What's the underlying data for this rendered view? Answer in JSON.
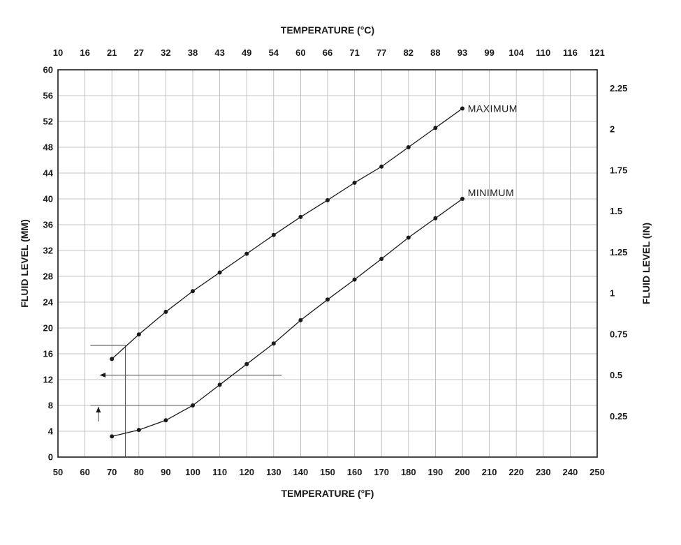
{
  "chart_data": {
    "type": "line",
    "title_top_axis": "TEMPERATURE (°C)",
    "xlabel_bottom": "TEMPERATURE (°F)",
    "ylabel_left": "FLUID LEVEL (MM)",
    "ylabel_right": "FLUID LEVEL (IN)",
    "x_axis": {
      "min": 50,
      "max": 250,
      "ticks": [
        50,
        60,
        70,
        80,
        90,
        100,
        110,
        120,
        130,
        140,
        150,
        160,
        170,
        180,
        190,
        200,
        210,
        220,
        230,
        240,
        250
      ],
      "labels_f": [
        "50",
        "60",
        "70",
        "80",
        "90",
        "100",
        "110",
        "120",
        "130",
        "140",
        "150",
        "160",
        "170",
        "180",
        "190",
        "200",
        "210",
        "220",
        "230",
        "240",
        "250"
      ],
      "labels_c": [
        "10",
        "16",
        "21",
        "27",
        "32",
        "38",
        "43",
        "49",
        "54",
        "60",
        "66",
        "71",
        "77",
        "82",
        "88",
        "93",
        "99",
        "104",
        "110",
        "116",
        "121"
      ]
    },
    "y_axis_left": {
      "min": 0,
      "max": 60,
      "ticks": [
        0,
        4,
        8,
        12,
        16,
        20,
        24,
        28,
        32,
        36,
        40,
        44,
        48,
        52,
        56,
        60
      ],
      "labels": [
        "0",
        "4",
        "8",
        "12",
        "16",
        "20",
        "24",
        "28",
        "32",
        "36",
        "40",
        "44",
        "48",
        "52",
        "56",
        "60"
      ]
    },
    "y_axis_right": {
      "unit_to_mm": 25.4,
      "ticks_in": [
        0.25,
        0.5,
        0.75,
        1,
        1.25,
        1.5,
        1.75,
        2,
        2.25
      ],
      "labels_in": [
        "0.25",
        "0.5",
        "0.75",
        "1",
        "1.25",
        "1.5",
        "1.75",
        "2",
        "2.25"
      ]
    },
    "grid": true,
    "legend_position": "inline-labels",
    "series": [
      {
        "name": "MAXIMUM",
        "x": [
          70,
          80,
          90,
          100,
          110,
          120,
          130,
          140,
          150,
          160,
          170,
          180,
          190,
          200
        ],
        "values": [
          15.2,
          19,
          22.5,
          25.7,
          28.6,
          31.5,
          34.4,
          37.2,
          39.8,
          42.5,
          45,
          48,
          51,
          54
        ],
        "label_x": 202,
        "label_y": 54
      },
      {
        "name": "MINIMUM",
        "x": [
          70,
          80,
          90,
          100,
          110,
          120,
          130,
          140,
          150,
          160,
          170,
          180,
          190,
          200
        ],
        "values": [
          3.2,
          4.2,
          5.7,
          8,
          11.2,
          14.4,
          17.6,
          21.2,
          24.4,
          27.5,
          30.7,
          34,
          37,
          40
        ],
        "label_x": 202,
        "label_y": 41
      }
    ],
    "annotations": [
      {
        "type": "line",
        "x1": 62,
        "y1": 17.3,
        "x2": 75,
        "y2": 17.3
      },
      {
        "type": "line",
        "x1": 75,
        "y1": 17.3,
        "x2": 75,
        "y2": 0
      },
      {
        "type": "arrow",
        "x1": 133,
        "y1": 12.7,
        "x2": 65.5,
        "y2": 12.7
      },
      {
        "type": "line",
        "x1": 62,
        "y1": 8,
        "x2": 100,
        "y2": 8
      },
      {
        "type": "arrow",
        "x1": 65,
        "y1": 5.5,
        "x2": 65,
        "y2": 7.8
      }
    ],
    "colors": {
      "line": "#1a1a1a",
      "marker": "#1a1a1a",
      "grid": "#b3b3b3",
      "border": "#1a1a1a",
      "annotation": "#555555",
      "text": "#1a1a1a",
      "background": "#ffffff"
    }
  }
}
